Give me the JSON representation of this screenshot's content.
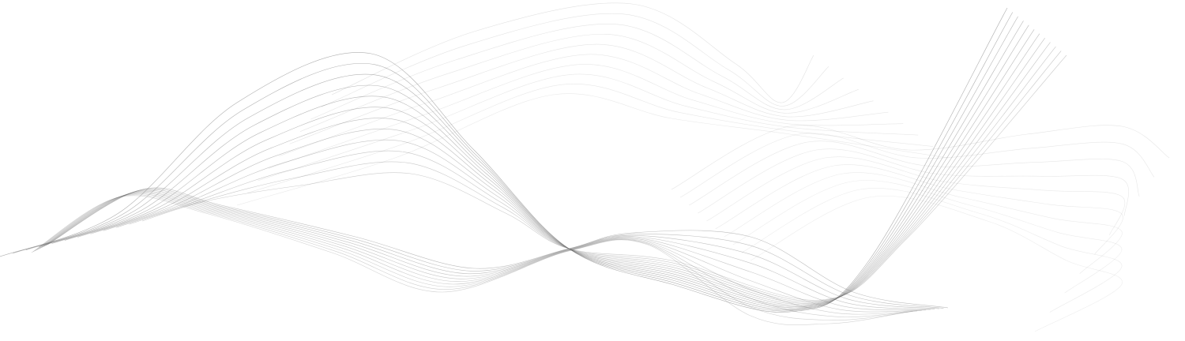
{
  "background_color": "#ffffff",
  "line_color": "#6e6e6e"
}
